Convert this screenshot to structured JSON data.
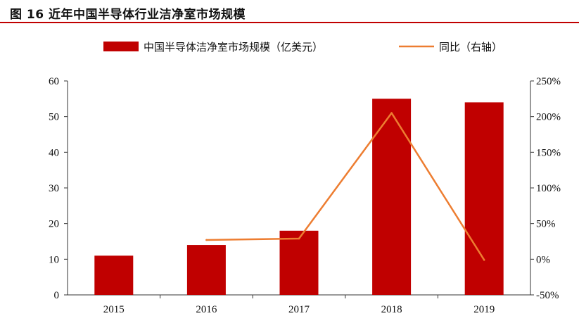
{
  "title": "图 16 近年中国半导体行业洁净室市场规模",
  "colors": {
    "bar": "#c00000",
    "line": "#ed7d31",
    "title_rule": "#c00000"
  },
  "chart_data": {
    "type": "bar",
    "categories": [
      "2015",
      "2016",
      "2017",
      "2018",
      "2019"
    ],
    "series": [
      {
        "name": "中国半导体洁净室市场规模（亿美元）",
        "type": "bar",
        "axis": "left",
        "values": [
          11,
          14,
          18,
          55,
          54
        ]
      },
      {
        "name": "同比（右轴）",
        "type": "line",
        "axis": "right",
        "values": [
          null,
          27,
          29,
          205,
          -1
        ]
      }
    ],
    "left_axis": {
      "ylim": [
        0,
        60
      ],
      "ticks": [
        "0",
        "10",
        "20",
        "30",
        "40",
        "50",
        "60"
      ]
    },
    "right_axis": {
      "ylim": [
        -50,
        250
      ],
      "ticks": [
        "-50%",
        "0%",
        "50%",
        "100%",
        "150%",
        "200%",
        "250%"
      ]
    },
    "legend_position": "top-center",
    "grid": false
  }
}
